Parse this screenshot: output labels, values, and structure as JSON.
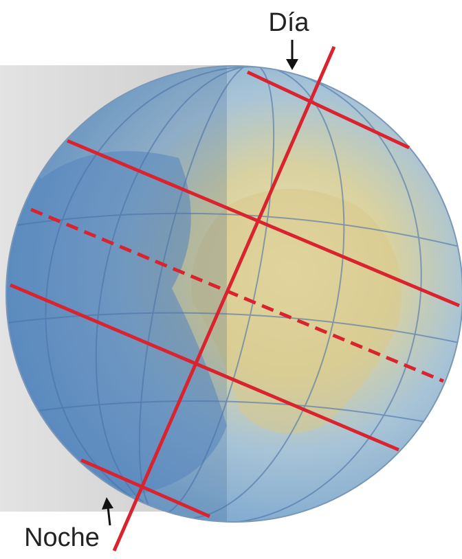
{
  "labels": {
    "day": "Día",
    "night": "Noche"
  }
}
